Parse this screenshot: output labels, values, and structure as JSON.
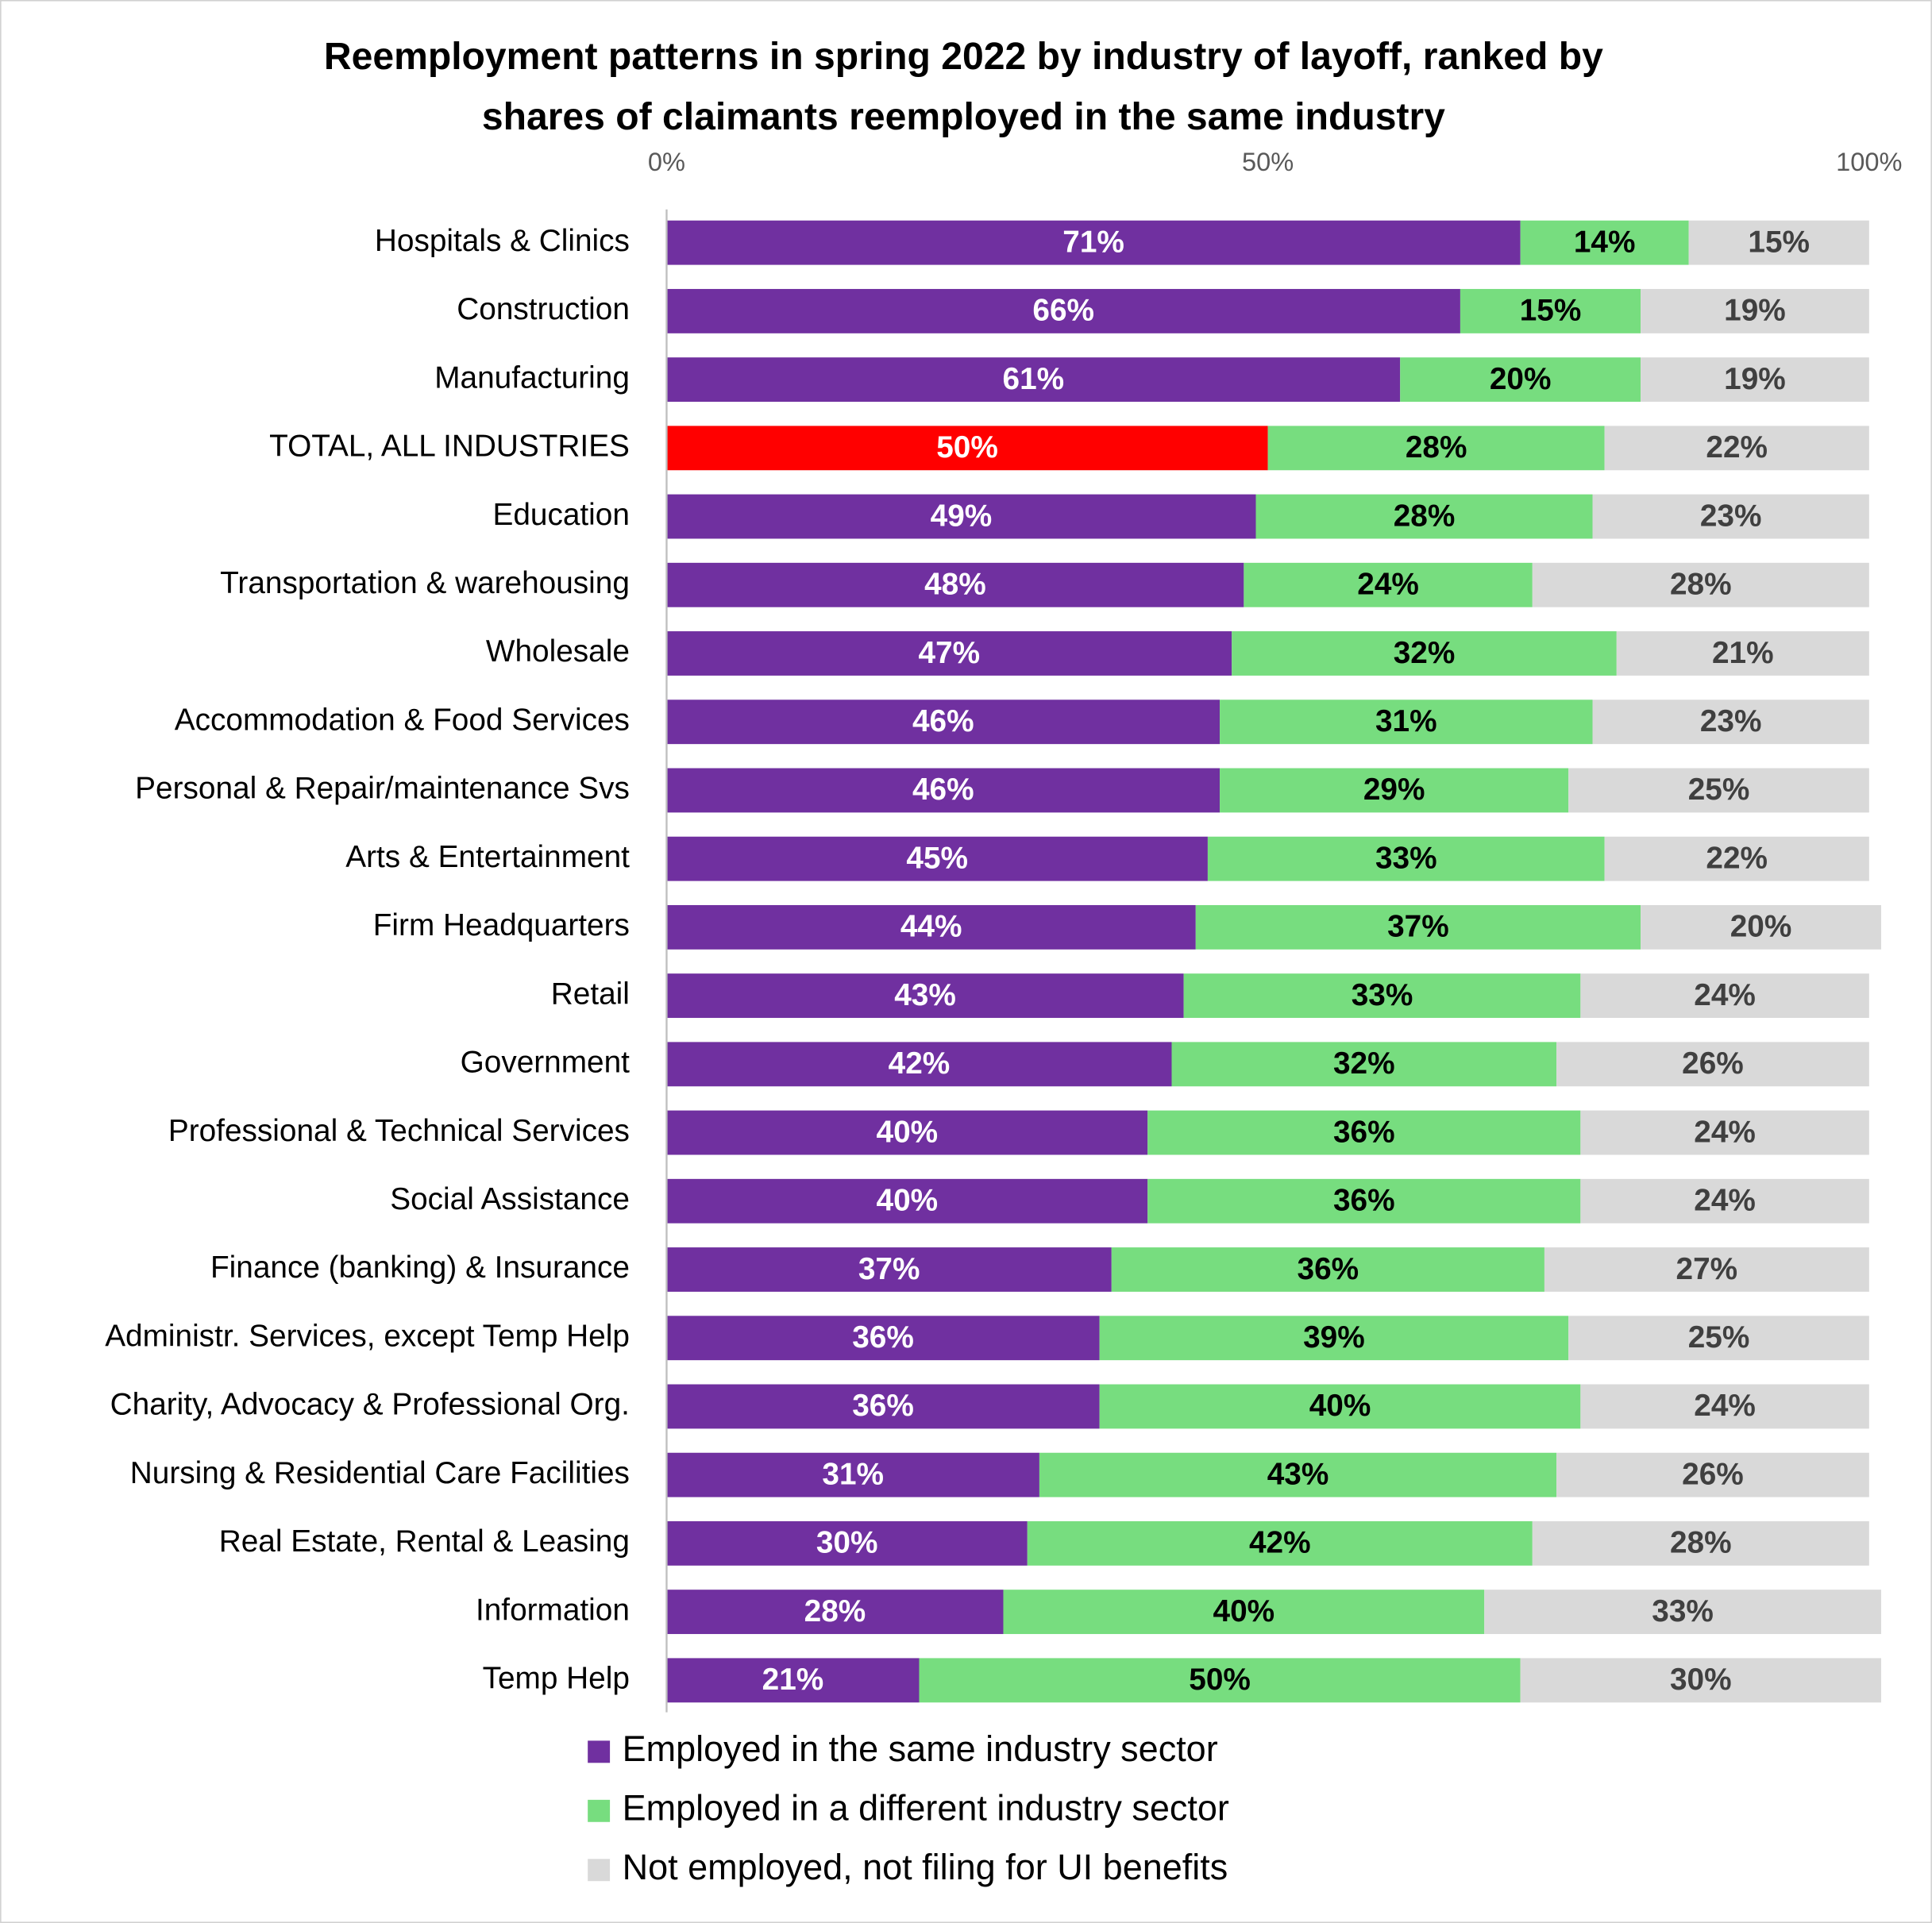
{
  "chart_data": {
    "type": "stacked-bar-horizontal",
    "title": [
      "Reemployment patterns in spring 2022 by industry of layoff, ranked by",
      "shares of claimants reemployed in the same industry"
    ],
    "categories": [
      "Hospitals & Clinics",
      "Construction",
      "Manufacturing",
      "TOTAL, ALL INDUSTRIES",
      "Education",
      "Transportation & warehousing",
      "Wholesale",
      "Accommodation & Food Services",
      "Personal & Repair/maintenance Svs",
      "Arts & Entertainment",
      "Firm Headquarters",
      "Retail",
      "Government",
      "Professional & Technical Services",
      "Social Assistance",
      "Finance (banking) & Insurance",
      "Administr. Services, except Temp Help",
      "Charity, Advocacy & Professional Org.",
      "Nursing & Residential Care Facilities",
      "Real Estate, Rental & Leasing",
      "Information",
      "Temp Help"
    ],
    "series": [
      {
        "name": "Employed in the same industry sector",
        "color": "#7030a0",
        "label_color": "#ffffff",
        "point_colors": [
          "#7030a0",
          "#7030a0",
          "#7030a0",
          "#ff0000",
          "#7030a0",
          "#7030a0",
          "#7030a0",
          "#7030a0",
          "#7030a0",
          "#7030a0",
          "#7030a0",
          "#7030a0",
          "#7030a0",
          "#7030a0",
          "#7030a0",
          "#7030a0",
          "#7030a0",
          "#7030a0",
          "#7030a0",
          "#7030a0",
          "#7030a0",
          "#7030a0"
        ],
        "values": [
          71,
          66,
          61,
          50,
          49,
          48,
          47,
          46,
          46,
          45,
          44,
          43,
          42,
          40,
          40,
          37,
          36,
          36,
          31,
          30,
          28,
          21
        ],
        "value_labels": [
          "71%",
          "66%",
          "61%",
          "50%",
          "49%",
          "48%",
          "47%",
          "46%",
          "46%",
          "45%",
          "44%",
          "43%",
          "42%",
          "40%",
          "40%",
          "37%",
          "36%",
          "36%",
          "31%",
          "30%",
          "28%",
          "21%"
        ]
      },
      {
        "name": "Employed in a different industry sector",
        "color": "#77dd7f",
        "label_color": "#000000",
        "values": [
          14,
          15,
          20,
          28,
          28,
          24,
          32,
          31,
          29,
          33,
          37,
          33,
          32,
          36,
          36,
          36,
          39,
          40,
          43,
          42,
          40,
          50
        ],
        "value_labels": [
          "14%",
          "15%",
          "20%",
          "28%",
          "28%",
          "24%",
          "32%",
          "31%",
          "29%",
          "33%",
          "37%",
          "33%",
          "32%",
          "36%",
          "36%",
          "36%",
          "39%",
          "40%",
          "43%",
          "42%",
          "40%",
          "50%"
        ]
      },
      {
        "name": "Not employed, not filing for UI benefits",
        "color": "#d9d9d9",
        "label_color": "#404040",
        "values": [
          15,
          19,
          19,
          22,
          23,
          28,
          21,
          23,
          25,
          22,
          20,
          24,
          26,
          24,
          24,
          27,
          25,
          24,
          26,
          28,
          33,
          30
        ],
        "value_labels": [
          "15%",
          "19%",
          "19%",
          "22%",
          "23%",
          "28%",
          "21%",
          "23%",
          "25%",
          "22%",
          "20%",
          "24%",
          "26%",
          "24%",
          "24%",
          "27%",
          "25%",
          "24%",
          "26%",
          "28%",
          "33%",
          "30%"
        ]
      }
    ],
    "xlim": [
      0,
      100
    ],
    "xticks": [
      {
        "value": 0,
        "label": "0%"
      },
      {
        "value": 50,
        "label": "50%"
      },
      {
        "value": 100,
        "label": "100%"
      }
    ],
    "grid": false,
    "legend": "bottom"
  }
}
